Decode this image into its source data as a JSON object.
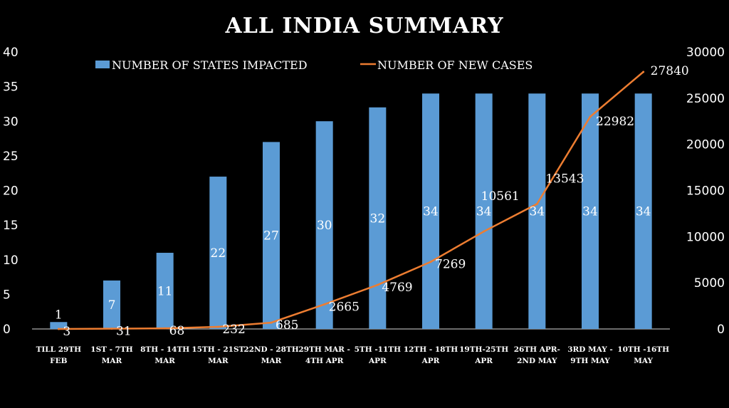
{
  "chart_data": {
    "type": "bar+line",
    "title": "ALL INDIA  SUMMARY",
    "categories": [
      [
        "TILL 29TH",
        "FEB"
      ],
      [
        "1ST - 7TH",
        "MAR"
      ],
      [
        "8TH - 14TH",
        "MAR"
      ],
      [
        "15TH - 21ST",
        "MAR"
      ],
      [
        "22ND - 28TH",
        "MAR"
      ],
      [
        "29TH MAR -",
        "4TH APR"
      ],
      [
        "5TH -11TH",
        "APR"
      ],
      [
        "12TH - 18TH",
        "APR"
      ],
      [
        "19TH-25TH",
        "APR"
      ],
      [
        "26TH APR-",
        "2ND MAY"
      ],
      [
        "3RD MAY -",
        "9TH MAY"
      ],
      [
        "10TH -16TH",
        "MAY"
      ]
    ],
    "series": [
      {
        "name": "NUMBER OF STATES IMPACTED",
        "type": "bar",
        "axis": "left",
        "color": "#5b9bd5",
        "values": [
          1,
          7,
          11,
          22,
          27,
          30,
          32,
          34,
          34,
          34,
          34,
          34
        ]
      },
      {
        "name": "NUMBER OF NEW CASES",
        "type": "line",
        "axis": "right",
        "color": "#ed7d31",
        "values": [
          3,
          31,
          68,
          232,
          685,
          2665,
          4769,
          7269,
          10561,
          13543,
          22982,
          27840
        ]
      }
    ],
    "left_axis": {
      "ylim": [
        0,
        40
      ],
      "ticks": [
        0,
        5,
        10,
        15,
        20,
        25,
        30,
        35,
        40
      ]
    },
    "right_axis": {
      "ylim": [
        0,
        30000
      ],
      "ticks": [
        0,
        5000,
        10000,
        15000,
        20000,
        25000,
        30000
      ]
    },
    "legend_position": "top",
    "grid": false
  }
}
